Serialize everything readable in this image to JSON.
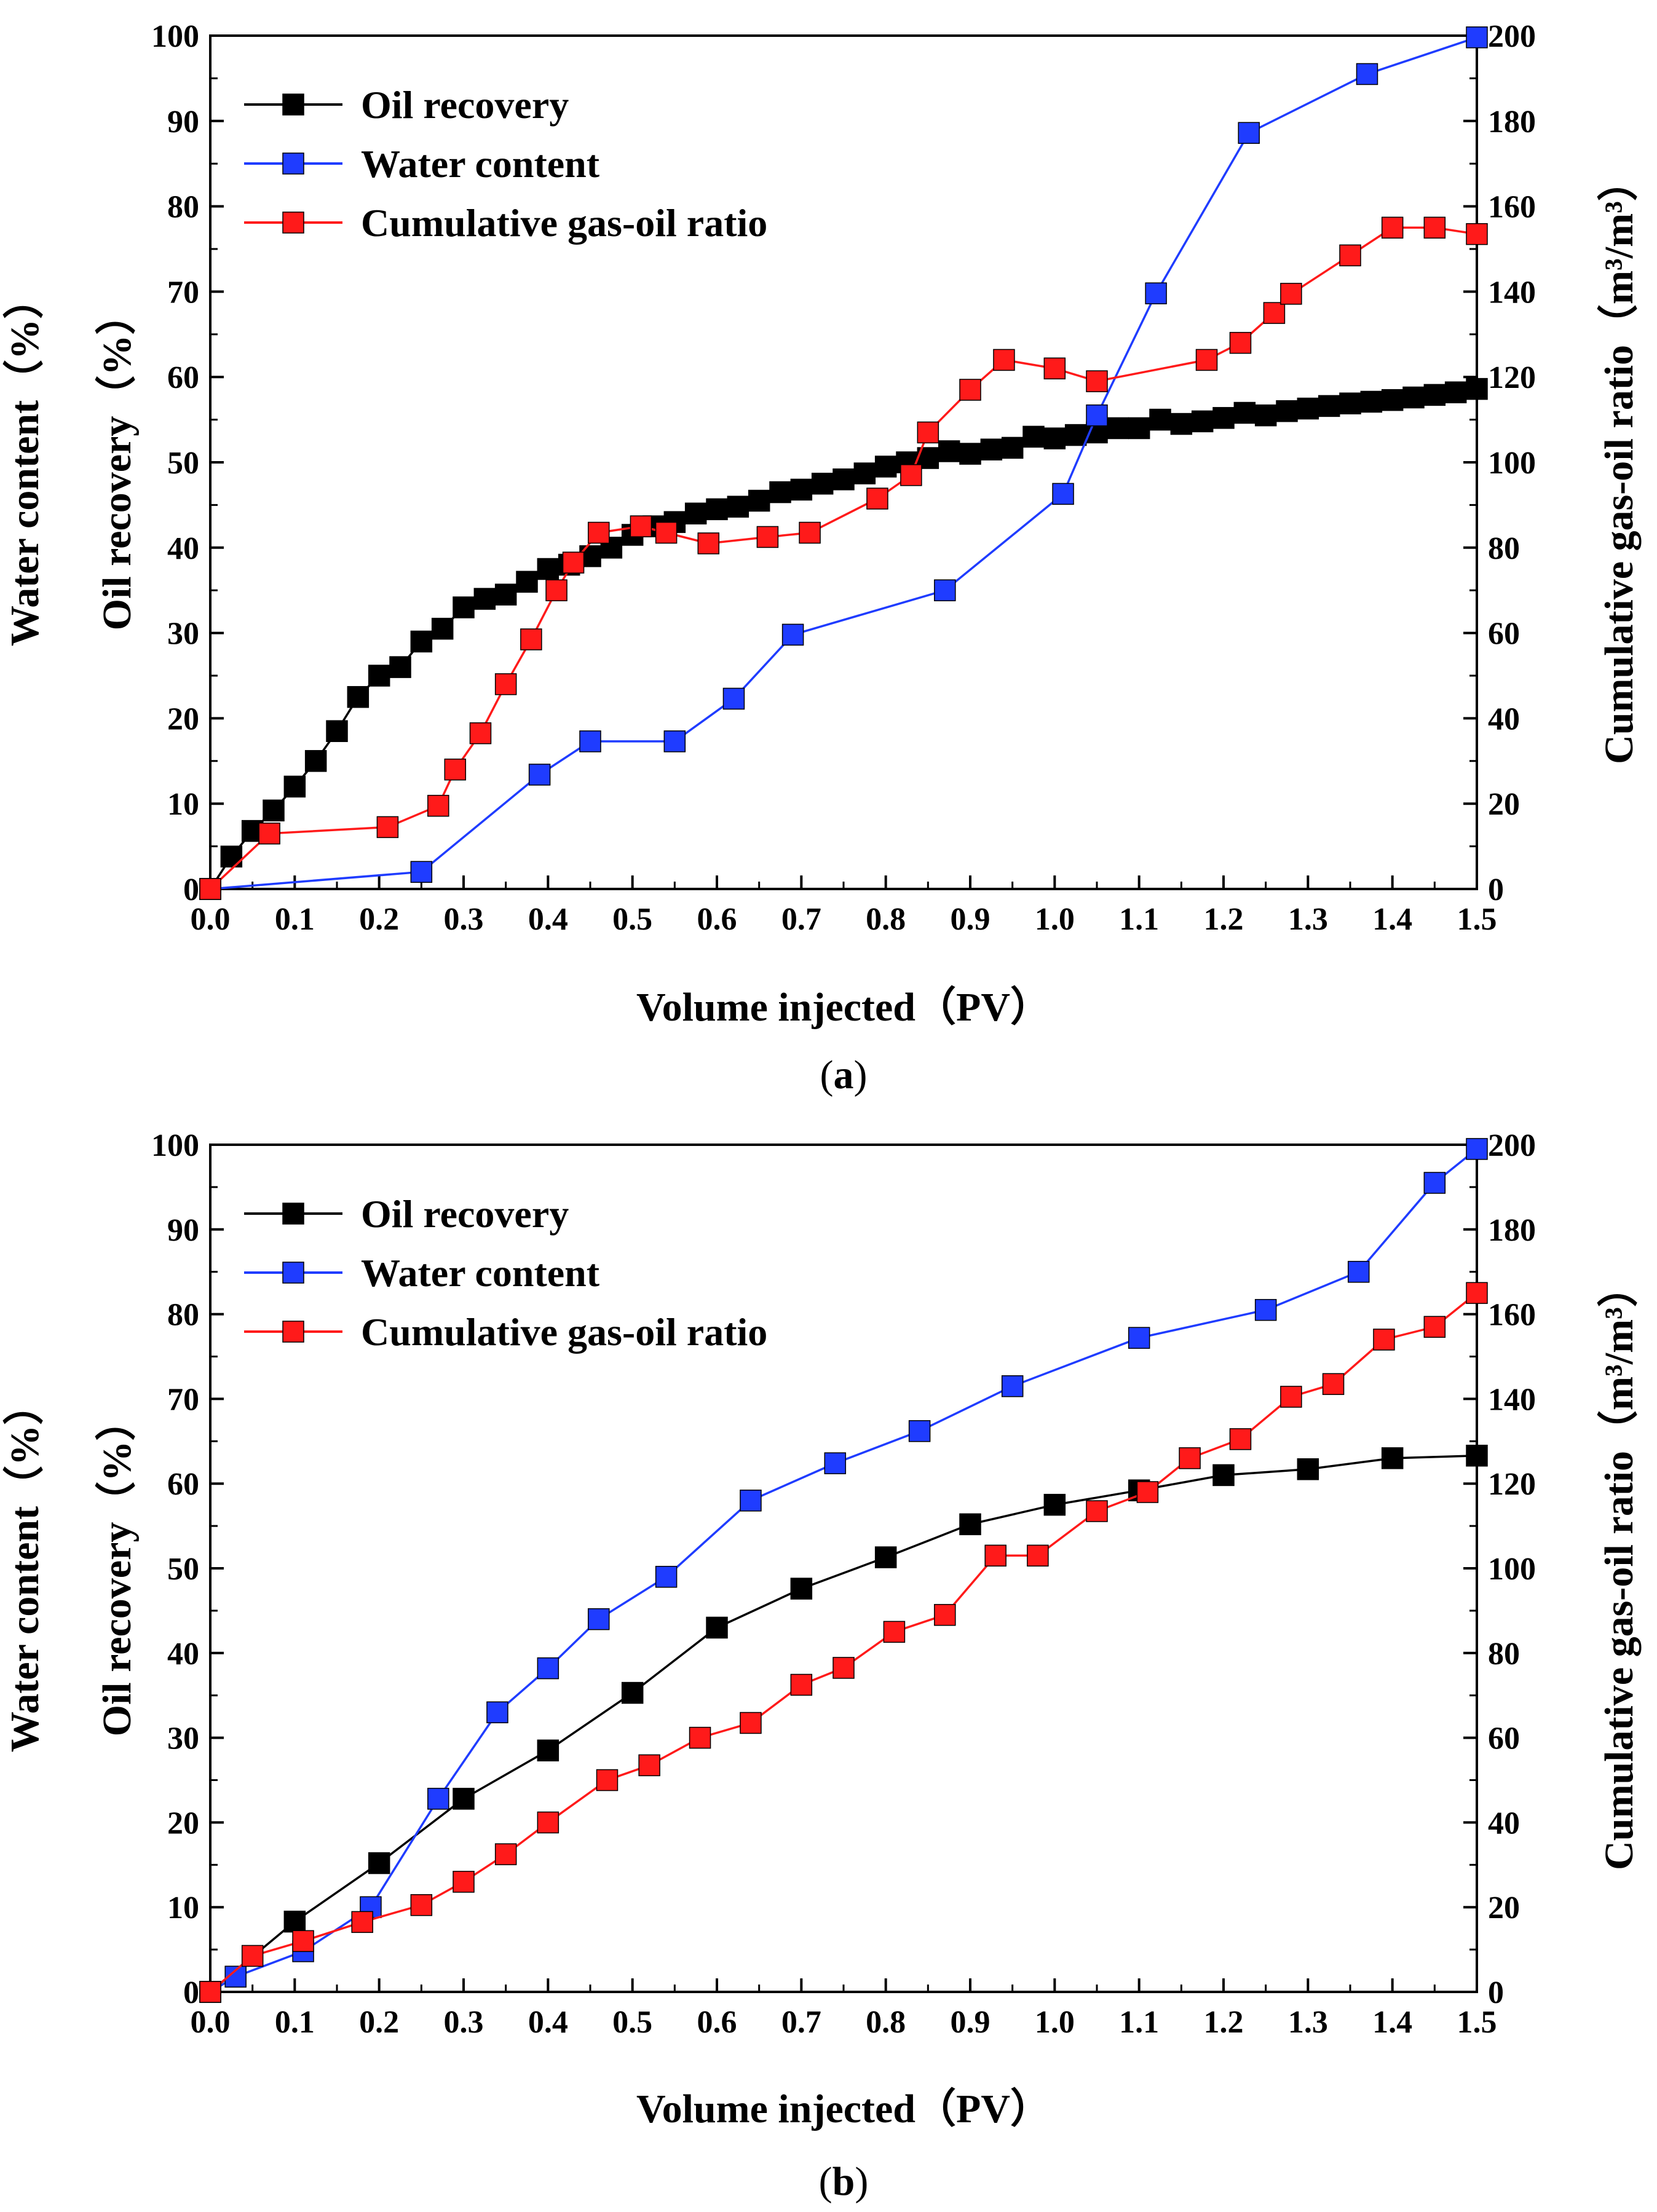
{
  "chart_data": [
    {
      "type": "line",
      "panel_label_open": "(",
      "panel_label_letter": "a",
      "panel_label_close": ")",
      "xlabel": "Volume injected（PV）",
      "ylabel_outer": "Water content（%）",
      "ylabel_inner": "Oil recovery（%）",
      "ylabel_right": "Cumulative gas-oil ratio（m³/m³）",
      "xlim": [
        0,
        1.5
      ],
      "ylim": [
        0,
        100
      ],
      "y2lim": [
        0,
        200
      ],
      "x_ticks": [
        "0.0",
        "0.1",
        "0.2",
        "0.3",
        "0.4",
        "0.5",
        "0.6",
        "0.7",
        "0.8",
        "0.9",
        "1.0",
        "1.1",
        "1.2",
        "1.3",
        "1.4",
        "1.5"
      ],
      "y_ticks": [
        "0",
        "10",
        "20",
        "30",
        "40",
        "50",
        "60",
        "70",
        "80",
        "90",
        "100"
      ],
      "y2_ticks": [
        "0",
        "20",
        "40",
        "60",
        "80",
        "100",
        "120",
        "140",
        "160",
        "180",
        "200"
      ],
      "legend_position": "top-left",
      "series": [
        {
          "name": "Oil recovery",
          "color": "#000000",
          "axis": "left",
          "x": [
            0.0,
            0.025,
            0.05,
            0.075,
            0.1,
            0.125,
            0.15,
            0.175,
            0.2,
            0.225,
            0.25,
            0.275,
            0.3,
            0.325,
            0.35,
            0.375,
            0.4,
            0.425,
            0.45,
            0.475,
            0.5,
            0.525,
            0.55,
            0.575,
            0.6,
            0.625,
            0.65,
            0.675,
            0.7,
            0.725,
            0.75,
            0.775,
            0.8,
            0.825,
            0.85,
            0.875,
            0.9,
            0.925,
            0.95,
            0.975,
            1.0,
            1.025,
            1.05,
            1.075,
            1.1,
            1.125,
            1.15,
            1.175,
            1.2,
            1.225,
            1.25,
            1.275,
            1.3,
            1.325,
            1.35,
            1.375,
            1.4,
            1.425,
            1.45,
            1.475,
            1.5
          ],
          "y": [
            0,
            3.8,
            6.8,
            9.2,
            12,
            15,
            18.5,
            22.5,
            25,
            26,
            29,
            30.5,
            33,
            34,
            34.5,
            36,
            37.5,
            38,
            39,
            40,
            41.5,
            42.5,
            43,
            44,
            44.5,
            44.8,
            45.5,
            46.5,
            46.8,
            47.5,
            48,
            48.7,
            49.5,
            50,
            50.5,
            51.3,
            51,
            51.5,
            51.7,
            53,
            52.8,
            53.2,
            53.5,
            54,
            54,
            55,
            54.5,
            54.8,
            55.2,
            55.8,
            55.5,
            56,
            56.3,
            56.6,
            56.9,
            57.1,
            57.3,
            57.6,
            57.9,
            58.2,
            58.6
          ]
        },
        {
          "name": "Water content",
          "color": "#1f3cff",
          "axis": "left",
          "x": [
            0.0,
            0.25,
            0.39,
            0.45,
            0.55,
            0.62,
            0.69,
            0.87,
            1.01,
            1.05,
            1.12,
            1.23,
            1.37,
            1.5
          ],
          "y": [
            0,
            2,
            13.4,
            17.3,
            17.3,
            22.3,
            29.8,
            35,
            46.3,
            55.5,
            69.8,
            88.6,
            95.5,
            99.8
          ]
        },
        {
          "name": "Cumulative gas-oil ratio",
          "color": "#ff1a1a",
          "axis": "right",
          "x": [
            0.0,
            0.07,
            0.21,
            0.27,
            0.29,
            0.32,
            0.35,
            0.38,
            0.41,
            0.43,
            0.46,
            0.51,
            0.54,
            0.59,
            0.66,
            0.71,
            0.79,
            0.83,
            0.85,
            0.9,
            0.94,
            1.0,
            1.05,
            1.18,
            1.22,
            1.26,
            1.28,
            1.35,
            1.4,
            1.45,
            1.5
          ],
          "y": [
            0,
            13,
            14.5,
            19.5,
            28,
            36.5,
            48,
            58.5,
            70,
            76.5,
            83.5,
            85,
            83.5,
            81,
            82.5,
            83.5,
            91.5,
            97,
            107,
            117,
            124,
            122,
            119,
            124,
            128,
            135,
            139.5,
            148.5,
            155,
            155,
            153.5
          ]
        }
      ]
    },
    {
      "type": "line",
      "panel_label_open": "(",
      "panel_label_letter": "b",
      "panel_label_close": ")",
      "xlabel": "Volume injected（PV）",
      "ylabel_outer": "Water content（%）",
      "ylabel_inner": "Oil recovery（%）",
      "ylabel_right": "Cumulative gas-oil ratio（m³/m³）",
      "xlim": [
        0,
        1.5
      ],
      "ylim": [
        0,
        100
      ],
      "y2lim": [
        0,
        200
      ],
      "x_ticks": [
        "0.0",
        "0.1",
        "0.2",
        "0.3",
        "0.4",
        "0.5",
        "0.6",
        "0.7",
        "0.8",
        "0.9",
        "1.0",
        "1.1",
        "1.2",
        "1.3",
        "1.4",
        "1.5"
      ],
      "y_ticks": [
        "0",
        "10",
        "20",
        "30",
        "40",
        "50",
        "60",
        "70",
        "80",
        "90",
        "100"
      ],
      "y2_ticks": [
        "0",
        "20",
        "40",
        "60",
        "80",
        "100",
        "120",
        "140",
        "160",
        "180",
        "200"
      ],
      "legend_position": "top-left",
      "series": [
        {
          "name": "Oil recovery",
          "color": "#000000",
          "axis": "left",
          "x": [
            0.0,
            0.1,
            0.2,
            0.3,
            0.4,
            0.5,
            0.6,
            0.7,
            0.8,
            0.9,
            1.0,
            1.1,
            1.2,
            1.3,
            1.4,
            1.5
          ],
          "y": [
            0,
            8.3,
            15.2,
            22.8,
            28.5,
            35.3,
            43,
            47.6,
            51.3,
            55.2,
            57.5,
            59.2,
            61,
            61.7,
            63,
            63.3
          ]
        },
        {
          "name": "Water content",
          "color": "#1f3cff",
          "axis": "left",
          "x": [
            0.0,
            0.03,
            0.11,
            0.19,
            0.27,
            0.34,
            0.4,
            0.46,
            0.54,
            0.64,
            0.74,
            0.84,
            0.95,
            1.1,
            1.25,
            1.36,
            1.45,
            1.5
          ],
          "y": [
            0,
            1.8,
            4.8,
            10,
            22.8,
            33,
            38.2,
            44,
            49,
            58,
            62.4,
            66.2,
            71.5,
            77.2,
            80.5,
            85,
            95.5,
            99.5
          ]
        },
        {
          "name": "Cumulative gas-oil ratio",
          "color": "#ff1a1a",
          "axis": "right",
          "x": [
            0.0,
            0.05,
            0.11,
            0.18,
            0.25,
            0.3,
            0.35,
            0.4,
            0.47,
            0.52,
            0.58,
            0.64,
            0.7,
            0.75,
            0.81,
            0.87,
            0.93,
            0.98,
            1.05,
            1.11,
            1.16,
            1.22,
            1.28,
            1.33,
            1.39,
            1.45,
            1.5
          ],
          "y": [
            0,
            8.5,
            12,
            16.5,
            20.5,
            26,
            32.5,
            40,
            50,
            53.5,
            60,
            63.5,
            72.5,
            76.5,
            85,
            89,
            103,
            103,
            113.5,
            118,
            126,
            130.5,
            140.5,
            143.5,
            154,
            157,
            165
          ]
        }
      ]
    }
  ]
}
